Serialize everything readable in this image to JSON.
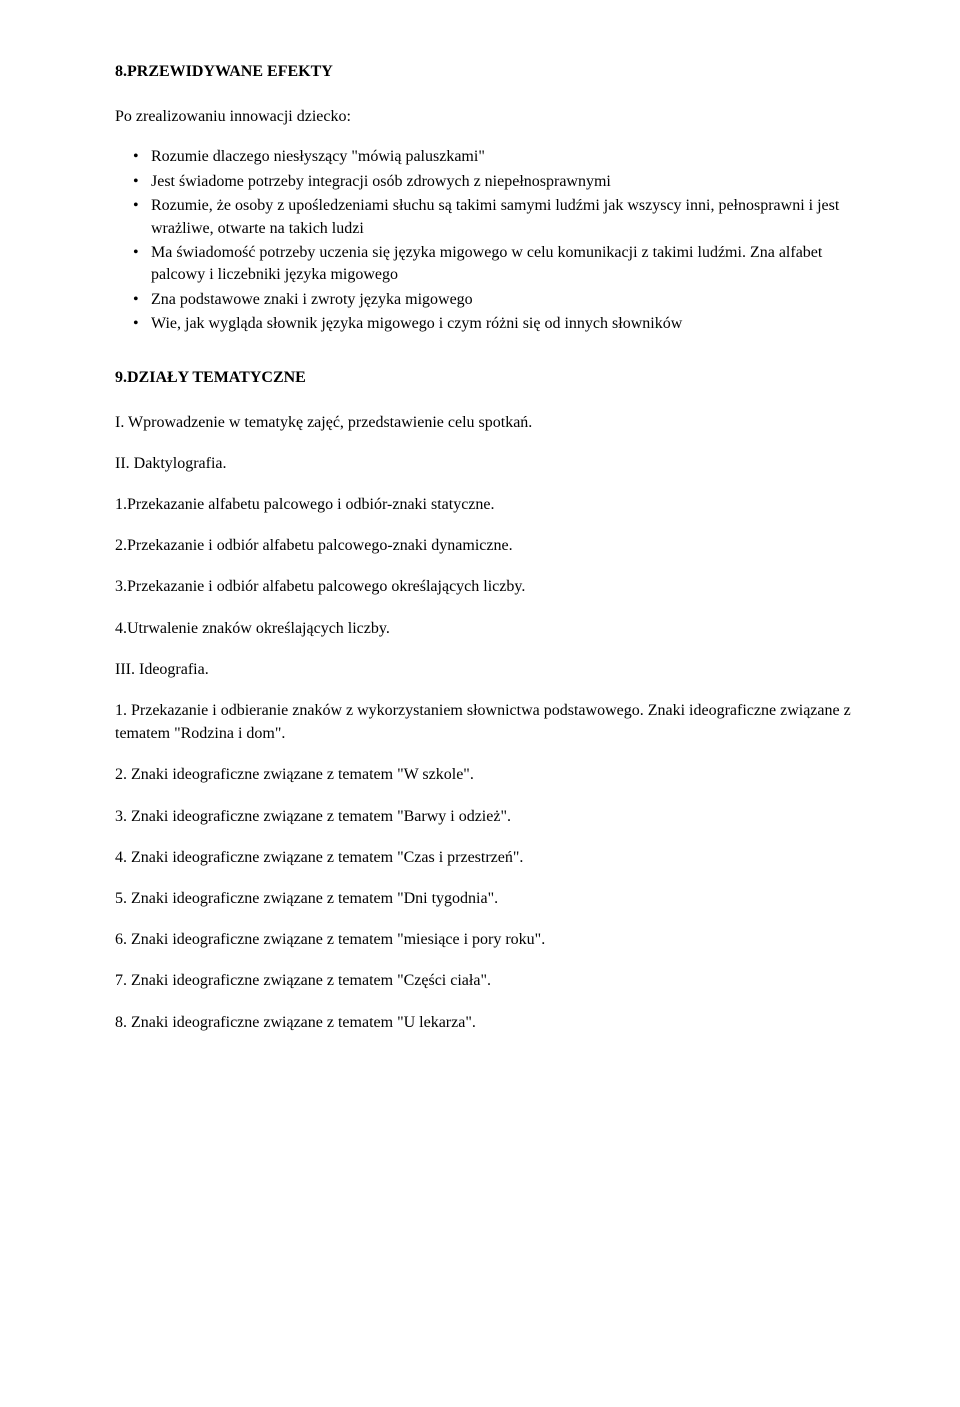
{
  "h1": "8.PRZEWIDYWANE EFEKTY",
  "intro": "Po zrealizowaniu innowacji dziecko:",
  "bullets": [
    "Rozumie dlaczego niesłyszący \"mówią paluszkami\"",
    "Jest świadome potrzeby integracji osób zdrowych z niepełnosprawnymi",
    "Rozumie, że osoby z upośledzeniami słuchu są takimi samymi ludźmi jak wszyscy inni, pełnosprawni i jest wrażliwe, otwarte na takich ludzi",
    "Ma świadomość potrzeby uczenia się języka migowego w celu komunikacji z takimi ludźmi. Zna alfabet palcowy i liczebniki języka migowego",
    "Zna podstawowe znaki i zwroty języka migowego",
    "Wie, jak wygląda słownik języka migowego i czym różni się od innych słowników"
  ],
  "h2": "9.DZIAŁY TEMATYCZNE",
  "s1": "I. Wprowadzenie w tematykę zajęć, przedstawienie celu spotkań.",
  "s2": "II. Daktylografia.",
  "d": [
    "1.Przekazanie alfabetu palcowego i odbiór-znaki statyczne.",
    "2.Przekazanie i odbiór alfabetu palcowego-znaki dynamiczne.",
    "3.Przekazanie i odbiór alfabetu palcowego określających liczby.",
    "4.Utrwalenie  znaków określających liczby."
  ],
  "s3": "III. Ideografia.",
  "i": [
    "1. Przekazanie i odbieranie znaków z wykorzystaniem słownictwa podstawowego. Znaki ideograficzne związane z tematem \"Rodzina i dom\".",
    "2. Znaki ideograficzne związane z tematem \"W szkole\".",
    "3. Znaki ideograficzne związane z tematem \"Barwy i odzież\".",
    "4. Znaki ideograficzne związane z tematem \"Czas i przestrzeń\".",
    "5. Znaki ideograficzne związane z tematem \"Dni tygodnia\".",
    "6. Znaki ideograficzne związane z tematem \"miesiące i pory roku\".",
    "7. Znaki ideograficzne związane z tematem \"Części ciała\".",
    "8. Znaki ideograficzne związane z tematem \"U lekarza\"."
  ]
}
